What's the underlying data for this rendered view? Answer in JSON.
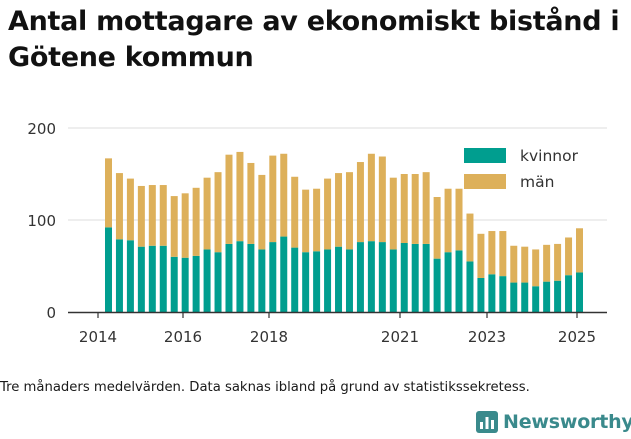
{
  "title": "Antal mottagare av ekonomiskt bistånd i Götene kommun",
  "footnote": "Tre månaders medelvärden. Data saknas ibland på grund av statistikssekretess.",
  "brand": {
    "name": "Newsworthy",
    "logo_icon": "bar-chart-logo-icon",
    "color": "#3a8a8c"
  },
  "colors": {
    "kvinnor": "#009e8f",
    "man": "#ddb05a",
    "axis": "#333333",
    "grid": "#dcdcdc",
    "text": "#333333"
  },
  "chart_data": {
    "type": "bar",
    "stacked": true,
    "ylim": [
      0,
      200
    ],
    "yticks": [
      0,
      100,
      200
    ],
    "xticks": [
      "2014",
      "2016",
      "2018",
      "2021",
      "2023",
      "2025"
    ],
    "grid": true,
    "legend_position": "top-right",
    "series": [
      {
        "name": "kvinnor",
        "values": [
          92,
          79,
          78,
          71,
          72,
          72,
          60,
          59,
          61,
          68,
          65,
          74,
          77,
          74,
          68,
          76,
          82,
          70,
          65,
          66,
          68,
          71,
          68,
          76,
          77,
          76,
          68,
          75,
          74,
          74,
          58,
          65,
          67,
          55,
          37,
          41,
          39,
          32,
          32,
          28,
          33,
          34,
          40,
          43
        ]
      },
      {
        "name": "män",
        "values": [
          75,
          72,
          67,
          66,
          66,
          66,
          66,
          70,
          74,
          78,
          87,
          97,
          97,
          88,
          81,
          94,
          90,
          77,
          68,
          68,
          77,
          80,
          84,
          87,
          95,
          93,
          78,
          75,
          76,
          78,
          67,
          69,
          67,
          52,
          48,
          47,
          49,
          40,
          39,
          40,
          40,
          40,
          41,
          48
        ]
      }
    ]
  }
}
